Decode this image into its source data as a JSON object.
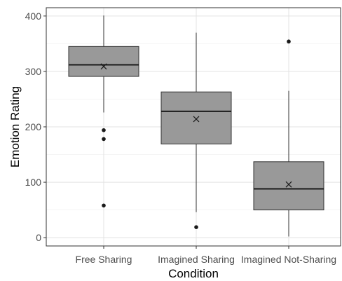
{
  "chart_data": {
    "type": "boxplot",
    "xlabel": "Condition",
    "ylabel": "Emotion Rating",
    "ylim": [
      -15,
      415
    ],
    "yticks": [
      0,
      100,
      200,
      300,
      400
    ],
    "grid": true,
    "categories": [
      "Free Sharing",
      "Imagined Sharing",
      "Imagined Not-Sharing"
    ],
    "boxes": [
      {
        "category": "Free Sharing",
        "min": 226,
        "q1": 291,
        "median": 312,
        "q3": 345,
        "max": 401,
        "mean": 309,
        "outliers": [
          194,
          178,
          58
        ]
      },
      {
        "category": "Imagined Sharing",
        "min": 46,
        "q1": 169,
        "median": 228,
        "q3": 263,
        "max": 370,
        "mean": 214,
        "outliers": [
          19
        ]
      },
      {
        "category": "Imagined Not-Sharing",
        "min": 2,
        "q1": 50,
        "median": 88,
        "q3": 137,
        "max": 265,
        "mean": 96,
        "outliers": [
          354
        ]
      }
    ],
    "colors": {
      "box_fill": "#999999",
      "box_stroke": "#333333",
      "panel_border": "#333333",
      "grid": "#e3e3e3"
    }
  }
}
